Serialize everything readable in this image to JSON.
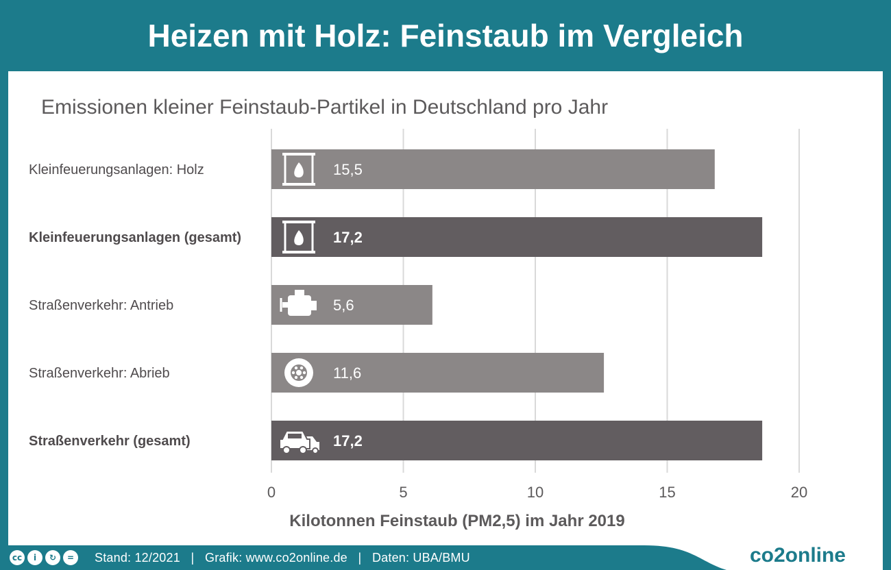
{
  "header": {
    "title": "Heizen mit Holz: Feinstaub im Vergleich"
  },
  "footer": {
    "license_icons": [
      "cc-icon",
      "by-icon",
      "sa-icon",
      "nd-icon"
    ],
    "text": "Stand: 12/2021   |   Grafik: www.co2online.de   |   Daten: UBA/BMU",
    "logo": "co2online"
  },
  "colors": {
    "teal": "#1c7b8b",
    "bar_light": "#8b8787",
    "bar_dark": "#625d60",
    "grid": "#d9d9d9"
  },
  "chart_data": {
    "type": "bar",
    "orientation": "horizontal",
    "title": "Emissionen kleiner Feinstaub-Partikel in Deutschland pro Jahr",
    "xlabel": "Kilotonnen Feinstaub (PM2,5) im Jahr 2019",
    "xlim": [
      0,
      20
    ],
    "xticks": [
      0,
      5,
      10,
      15,
      20
    ],
    "grid": true,
    "categories": [
      "Kleinfeuerungsanlagen: Holz",
      "Kleinfeuerungsanlagen (gesamt)",
      "Straßenverkehr: Antrieb",
      "Straßenverkehr: Abrieb",
      "Straßenverkehr (gesamt)"
    ],
    "values": [
      15.5,
      17.2,
      5.6,
      11.6,
      17.2
    ],
    "value_labels": [
      "15,5",
      "17,2",
      "5,6",
      "11,6",
      "17,2"
    ],
    "bold": [
      false,
      true,
      false,
      false,
      true
    ],
    "icons": [
      "fireplace-icon",
      "fireplace-icon",
      "engine-icon",
      "tire-icon",
      "cars-icon"
    ]
  }
}
